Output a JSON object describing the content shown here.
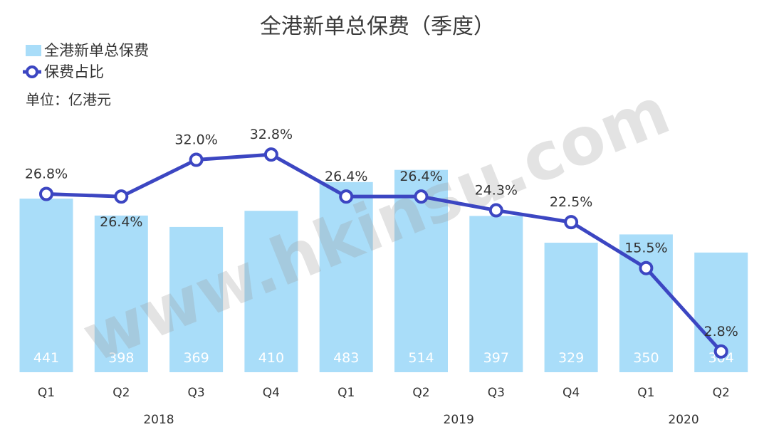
{
  "title": "全港新单总保费（季度）",
  "legend": {
    "bars": "全港新单总保费",
    "line": "保费占比"
  },
  "unit": "单位：亿港元",
  "watermark": "www.hkinsu.com",
  "colors": {
    "bar": "#a9ddf9",
    "line": "#3c46c2",
    "marker_fill": "#ffffff"
  },
  "chart_data": {
    "type": "bar+line",
    "categories": [
      "Q1",
      "Q2",
      "Q3",
      "Q4",
      "Q1",
      "Q2",
      "Q3",
      "Q4",
      "Q1",
      "Q2"
    ],
    "years": [
      {
        "label": "2018",
        "quarters": [
          "Q1",
          "Q2",
          "Q3",
          "Q4"
        ]
      },
      {
        "label": "2019",
        "quarters": [
          "Q1",
          "Q2",
          "Q3",
          "Q4"
        ]
      },
      {
        "label": "2020",
        "quarters": [
          "Q1",
          "Q2"
        ]
      }
    ],
    "series": [
      {
        "name": "全港新单总保费",
        "type": "bar",
        "values": [
          441,
          398,
          369,
          410,
          483,
          514,
          397,
          329,
          350,
          304
        ],
        "labels": [
          "441",
          "398",
          "369",
          "410",
          "483",
          "514",
          "397",
          "329",
          "350",
          "304"
        ]
      },
      {
        "name": "保费占比",
        "type": "line",
        "values": [
          26.8,
          26.4,
          32.0,
          32.8,
          26.4,
          26.4,
          24.3,
          22.5,
          15.5,
          2.8
        ],
        "labels": [
          "26.8%",
          "26.4%",
          "32.0%",
          "32.8%",
          "26.4%",
          "26.4%",
          "24.3%",
          "22.5%",
          "15.5%",
          "2.8%"
        ]
      }
    ],
    "grid": false,
    "legend_position": "top-left"
  }
}
